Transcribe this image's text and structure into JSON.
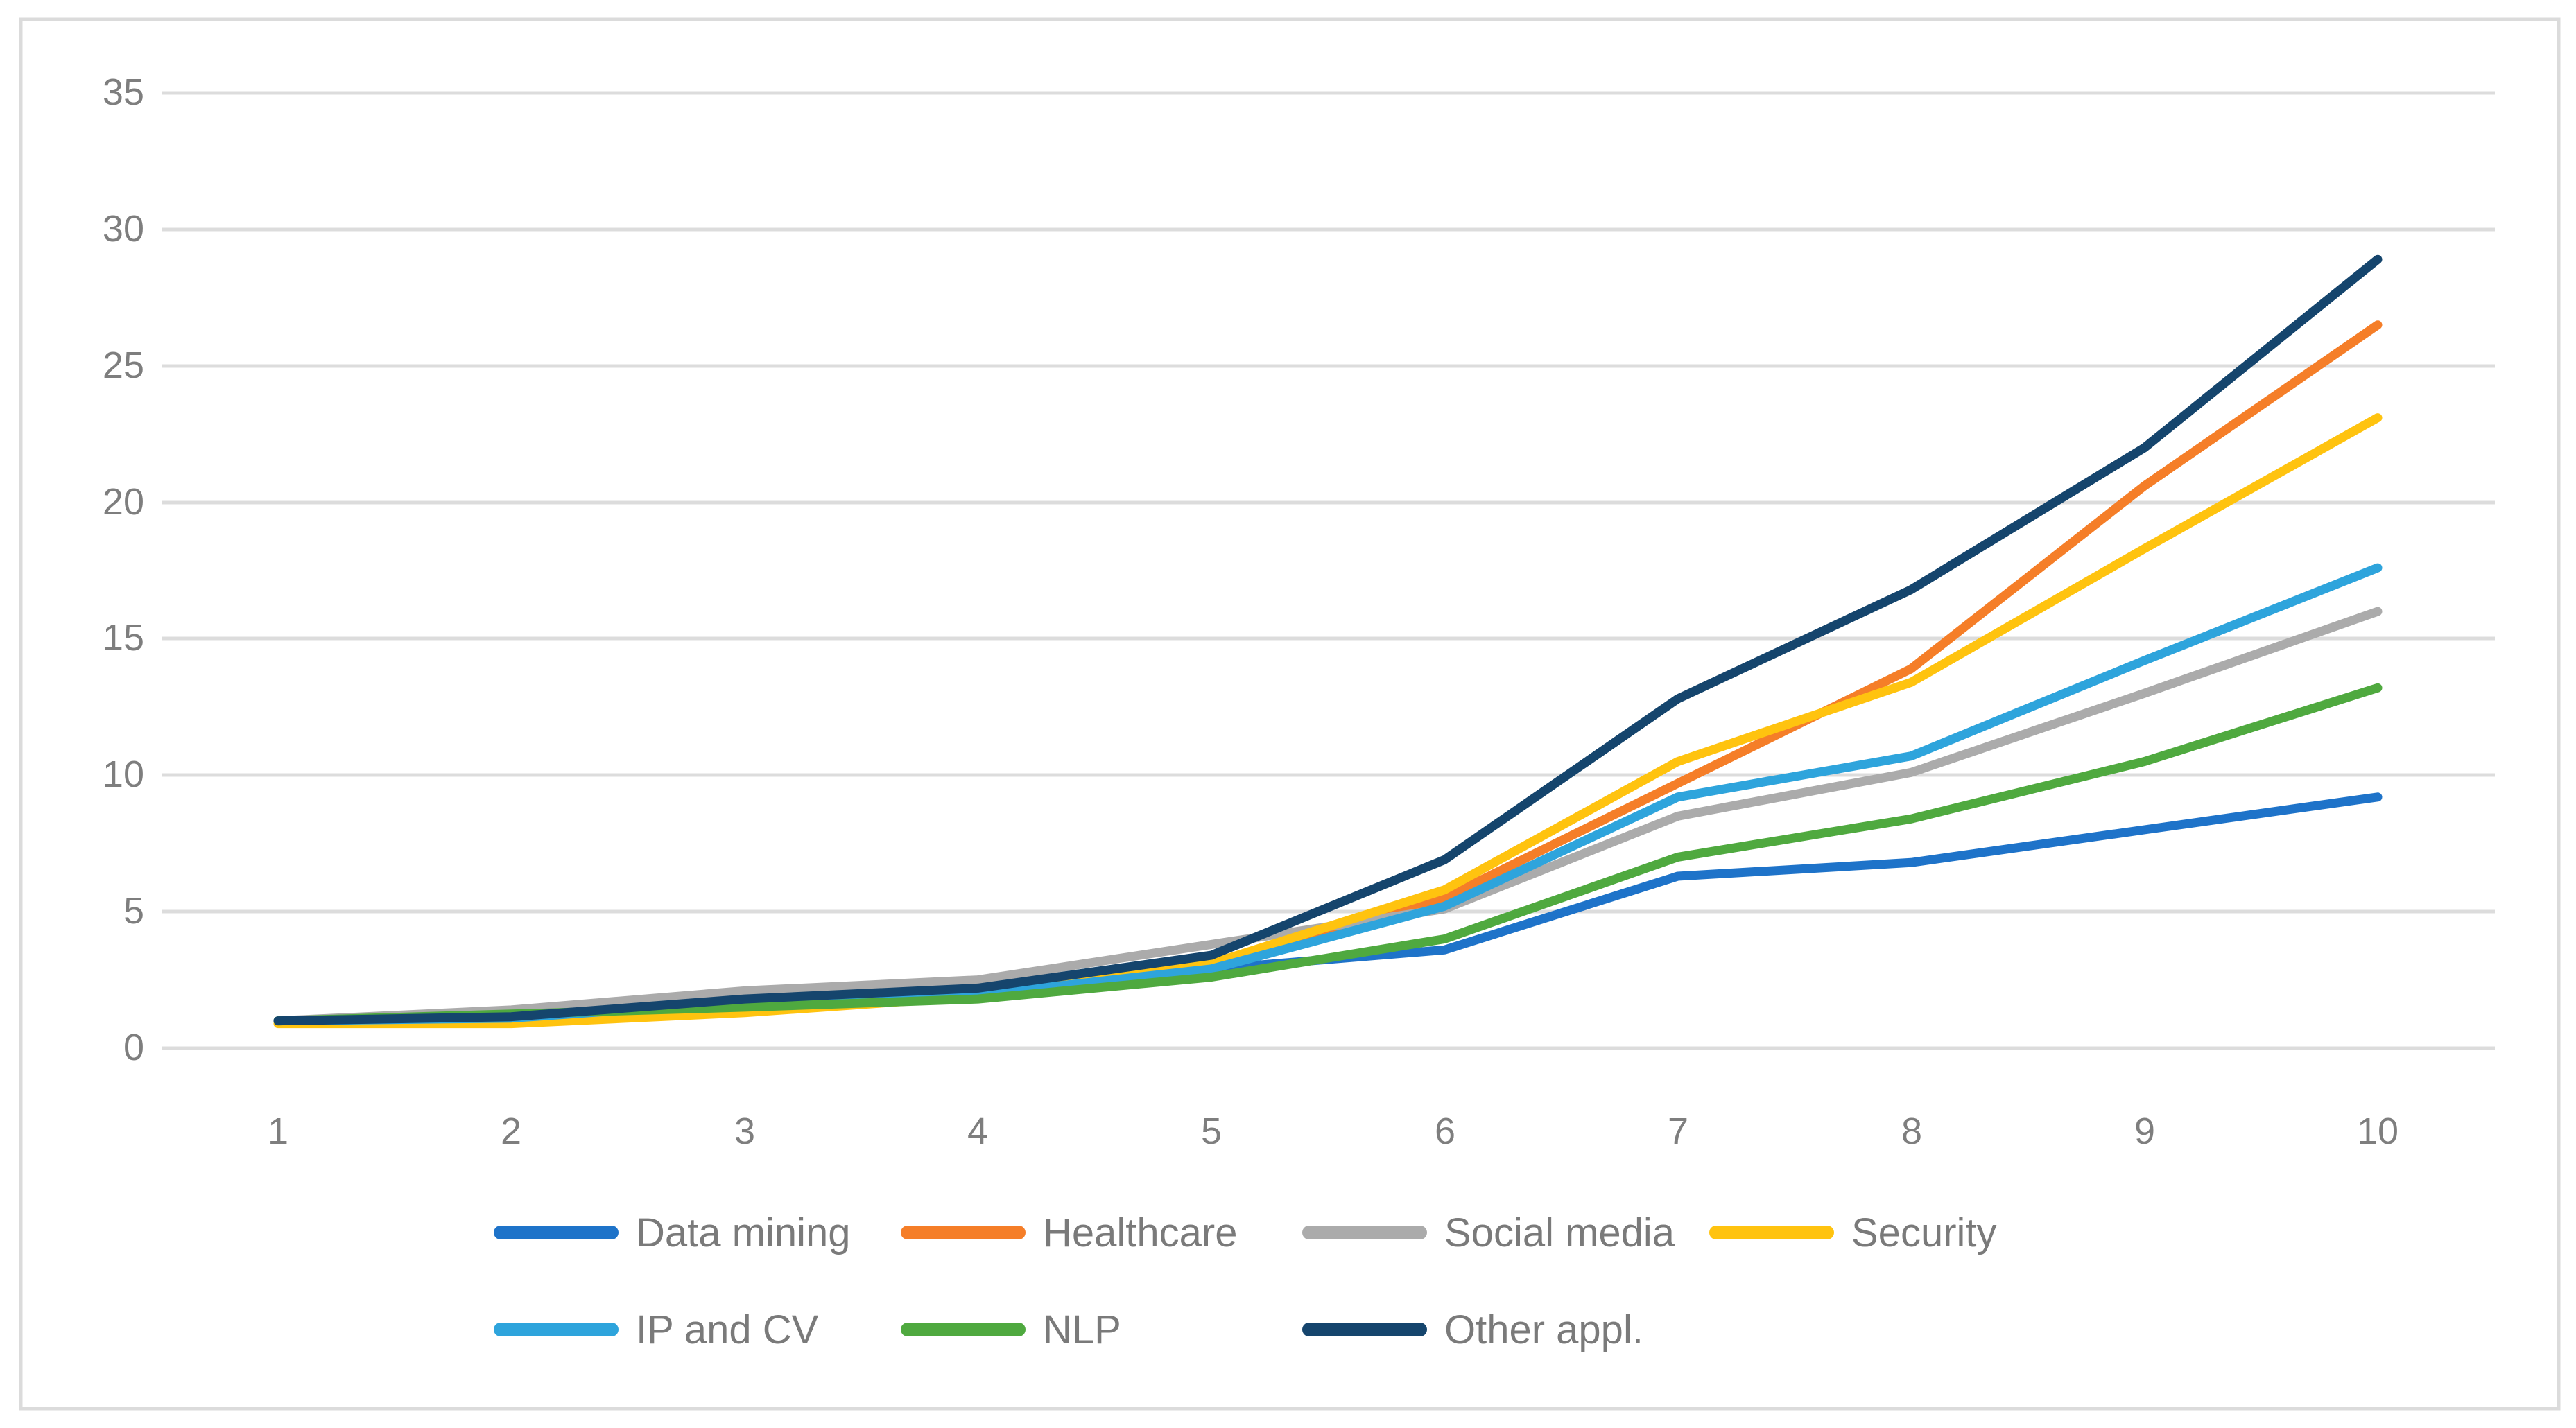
{
  "chart_data": {
    "type": "line",
    "x": [
      1,
      2,
      3,
      4,
      5,
      6,
      7,
      8,
      9,
      10
    ],
    "x_tick_labels": [
      "1",
      "2",
      "3",
      "4",
      "5",
      "6",
      "7",
      "8",
      "9",
      "10"
    ],
    "y_ticks": [
      "35",
      "30",
      "25",
      "20",
      "15",
      "10",
      "5",
      "0"
    ],
    "ylim": [
      0,
      35
    ],
    "xlim": [
      1,
      10
    ],
    "title": "",
    "xlabel": "",
    "ylabel": "",
    "grid": "horizontal",
    "legend_position": "bottom",
    "series": [
      {
        "name": "Data mining",
        "color": "#1E73C9",
        "values": [
          1.0,
          1.1,
          1.7,
          1.9,
          2.9,
          3.6,
          6.3,
          6.8,
          8.0,
          9.2
        ]
      },
      {
        "name": "Healthcare",
        "color": "#F57E28",
        "values": [
          1.0,
          1.1,
          1.7,
          2.0,
          3.0,
          5.5,
          9.7,
          13.9,
          20.6,
          26.5
        ]
      },
      {
        "name": "Social media",
        "color": "#ABABAB",
        "values": [
          1.0,
          1.4,
          2.1,
          2.5,
          3.8,
          5.1,
          8.5,
          10.1,
          13.0,
          16.0
        ]
      },
      {
        "name": "Security",
        "color": "#FFC30F",
        "values": [
          0.9,
          0.9,
          1.3,
          1.9,
          3.1,
          5.8,
          10.5,
          13.4,
          18.3,
          23.1
        ]
      },
      {
        "name": "IP and CV",
        "color": "#2EA4DC",
        "values": [
          1.0,
          1.1,
          1.7,
          1.95,
          2.9,
          5.2,
          9.2,
          10.7,
          14.2,
          17.6
        ]
      },
      {
        "name": "NLP",
        "color": "#4FA93F",
        "values": [
          1.0,
          1.25,
          1.5,
          1.8,
          2.6,
          4.0,
          7.0,
          8.4,
          10.5,
          13.2
        ]
      },
      {
        "name": "Other appl.",
        "color": "#15456D",
        "values": [
          1.0,
          1.15,
          1.8,
          2.2,
          3.4,
          6.9,
          12.8,
          16.8,
          22.0,
          28.9
        ]
      }
    ]
  },
  "colors": {
    "background": "#FFFFFF",
    "grid": "#DCDCDC",
    "border": "#DBDBDB",
    "tick_text": "#7E7E7E",
    "legend_text": "#7A7A7A"
  }
}
